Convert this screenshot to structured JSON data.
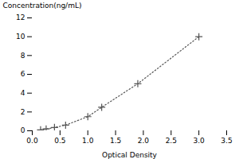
{
  "chart_data": {
    "type": "line",
    "x": [
      0.15,
      0.25,
      0.4,
      0.6,
      1.0,
      1.25,
      1.9,
      3.0
    ],
    "values": [
      0.1,
      0.2,
      0.35,
      0.6,
      1.5,
      2.5,
      5.0,
      10.0
    ],
    "xlabel": "Optical Density",
    "ylabel": "Concentration(ng/mL)",
    "xlim": [
      0,
      3.5
    ],
    "ylim": [
      0,
      12
    ],
    "xticks": [
      {
        "value": 0,
        "label": "0.0"
      },
      0.5,
      {
        "value": 1,
        "label": "1.0"
      },
      1.5,
      {
        "value": 2,
        "label": "2.0"
      },
      2.5,
      {
        "value": 3,
        "label": "3.0"
      },
      3.5
    ],
    "yticks": [
      0,
      2,
      4,
      6,
      8,
      10,
      12
    ],
    "color": "#555555",
    "marker": "plus",
    "line_style": "dotted",
    "grid": false
  }
}
